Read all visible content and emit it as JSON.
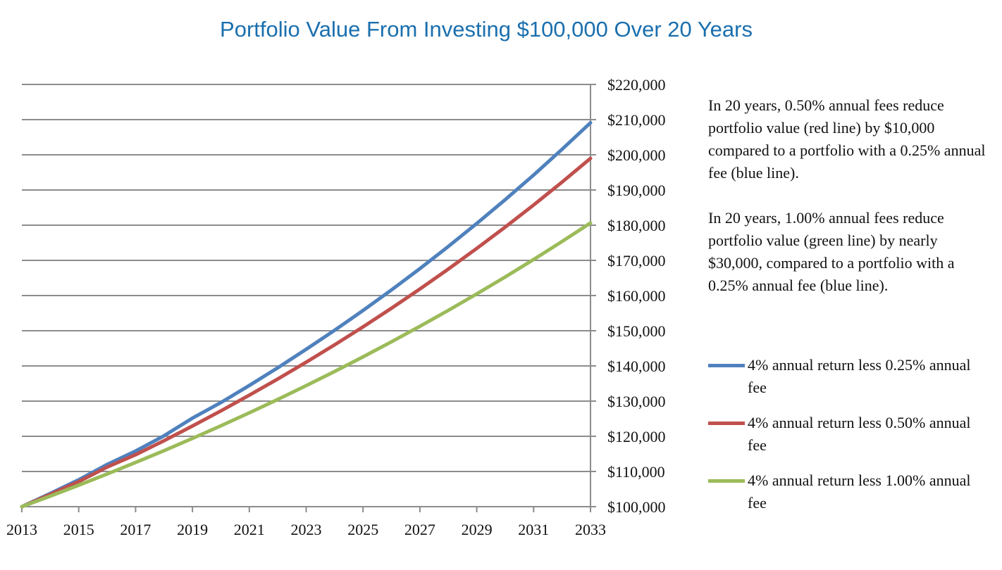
{
  "chart_data": {
    "type": "line",
    "title": "Portfolio Value From Investing $100,000 Over 20 Years",
    "xlabel": "",
    "ylabel": "",
    "x": [
      2013,
      2014,
      2015,
      2016,
      2017,
      2018,
      2019,
      2020,
      2021,
      2022,
      2023,
      2024,
      2025,
      2026,
      2027,
      2028,
      2029,
      2030,
      2031,
      2032,
      2033
    ],
    "x_tick_labels": [
      "2013",
      "2015",
      "2017",
      "2019",
      "2021",
      "2023",
      "2025",
      "2027",
      "2029",
      "2031",
      "2033"
    ],
    "y_tick_labels": [
      "$100,000",
      "$110,000",
      "$120,000",
      "$130,000",
      "$140,000",
      "$150,000",
      "$160,000",
      "$170,000",
      "$180,000",
      "$190,000",
      "$200,000",
      "$210,000",
      "$220,000"
    ],
    "xlim": [
      2013,
      2033
    ],
    "ylim": [
      100000,
      220000
    ],
    "grid": "horizontal",
    "series": [
      {
        "name": "4% annual return less 0.25% annual fee",
        "color": "#4f81bd",
        "values": [
          100000,
          103750,
          107641,
          112008,
          115805,
          120148,
          125160,
          129580,
          134439,
          139481,
          144711,
          150138,
          155768,
          161609,
          167669,
          173957,
          180480,
          187248,
          194270,
          201555,
          209114
        ]
      },
      {
        "name": "4% annual return less 0.50% annual fee",
        "color": "#c0504d",
        "values": [
          100000,
          103500,
          107123,
          111262,
          114751,
          118767,
          122924,
          127226,
          131679,
          136288,
          141058,
          145995,
          151104,
          156393,
          161867,
          167532,
          173396,
          179465,
          185746,
          192247,
          198976
        ]
      },
      {
        "name": "4% annual return less 1.00% annual fee",
        "color": "#9bbb59",
        "values": [
          100000,
          103000,
          106090,
          109273,
          112551,
          115927,
          119405,
          122987,
          126677,
          130477,
          134392,
          138423,
          142576,
          146853,
          151259,
          155797,
          160471,
          165285,
          170243,
          175351,
          180611
        ]
      }
    ]
  },
  "notes": [
    "In 20 years, 0.50% annual fees reduce portfolio value (red line) by $10,000 compared to a portfolio with a 0.25% annual fee (blue line).",
    "In 20 years, 1.00% annual fees reduce portfolio value (green line) by nearly $30,000, compared to a portfolio with a 0.25% annual fee (blue line)."
  ],
  "legend": [
    {
      "label": "4% annual return less 0.25% annual fee",
      "color": "#4f81bd"
    },
    {
      "label": "4% annual return less 0.50% annual fee",
      "color": "#c0504d"
    },
    {
      "label": "4% annual return less 1.00% annual fee",
      "color": "#9bbb59"
    }
  ]
}
